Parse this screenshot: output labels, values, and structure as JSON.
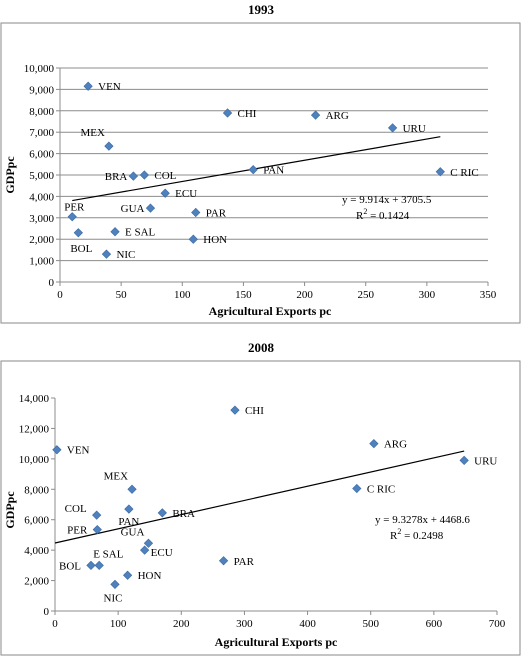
{
  "chart_data": [
    {
      "type": "scatter",
      "title": "1993",
      "xlabel": "Agricultural Exports pc",
      "ylabel": "GDPpc",
      "xlim": [
        0,
        350
      ],
      "ylim": [
        0,
        10000
      ],
      "xticks": [
        "0",
        "50",
        "100",
        "150",
        "200",
        "250",
        "300",
        "350"
      ],
      "yticks": [
        "0",
        "1,000",
        "2,000",
        "3,000",
        "4,000",
        "5,000",
        "6,000",
        "7,000",
        "8,000",
        "9,000",
        "10,000"
      ],
      "grid": "horizontal",
      "points": [
        {
          "label": "VEN",
          "x": 23,
          "y": 9150
        },
        {
          "label": "CHI",
          "x": 137,
          "y": 7900
        },
        {
          "label": "ARG",
          "x": 209,
          "y": 7800
        },
        {
          "label": "URU",
          "x": 272,
          "y": 7200
        },
        {
          "label": "MEX",
          "x": 40,
          "y": 6350
        },
        {
          "label": "BRA",
          "x": 60,
          "y": 4950
        },
        {
          "label": "COL",
          "x": 69,
          "y": 5000
        },
        {
          "label": "PAN",
          "x": 158,
          "y": 5250
        },
        {
          "label": "C RIC",
          "x": 311,
          "y": 5150
        },
        {
          "label": "ECU",
          "x": 86,
          "y": 4150
        },
        {
          "label": "GUA",
          "x": 74,
          "y": 3450
        },
        {
          "label": "PAR",
          "x": 111,
          "y": 3250
        },
        {
          "label": "PER",
          "x": 10,
          "y": 3050
        },
        {
          "label": "E SAL",
          "x": 45,
          "y": 2350
        },
        {
          "label": "BOL",
          "x": 15,
          "y": 2300
        },
        {
          "label": "HON",
          "x": 109,
          "y": 2000
        },
        {
          "label": "NIC",
          "x": 38,
          "y": 1300
        }
      ],
      "trendline": {
        "slope": 9.914,
        "intercept": 3705.5,
        "x_range": [
          10,
          311
        ]
      },
      "equation": "y = 9.914x + 3705.5",
      "r2_prefix": "R",
      "r2_exp": "2",
      "r2_value": " = 0.1424",
      "marker_color": "#4f81bd"
    },
    {
      "type": "scatter",
      "title": "2008",
      "xlabel": "Agricultural Exports pc",
      "ylabel": "GDPpc",
      "xlim": [
        0,
        700
      ],
      "ylim": [
        0,
        14000
      ],
      "xticks": [
        "0",
        "100",
        "200",
        "300",
        "400",
        "500",
        "600",
        "700"
      ],
      "yticks": [
        "0",
        "2,000",
        "4,000",
        "6,000",
        "8,000",
        "10,000",
        "12,000",
        "14,000"
      ],
      "grid": "none",
      "points": [
        {
          "label": "CHI",
          "x": 285,
          "y": 13200
        },
        {
          "label": "ARG",
          "x": 505,
          "y": 11000
        },
        {
          "label": "VEN",
          "x": 3,
          "y": 10600
        },
        {
          "label": "URU",
          "x": 648,
          "y": 9900
        },
        {
          "label": "C RIC",
          "x": 478,
          "y": 8050
        },
        {
          "label": "MEX",
          "x": 122,
          "y": 8000
        },
        {
          "label": "COL",
          "x": 66,
          "y": 6300
        },
        {
          "label": "PAN",
          "x": 117,
          "y": 6700
        },
        {
          "label": "BRA",
          "x": 170,
          "y": 6450
        },
        {
          "label": "PER",
          "x": 67,
          "y": 5350
        },
        {
          "label": "GUA",
          "x": 148,
          "y": 4450
        },
        {
          "label": "ECU",
          "x": 142,
          "y": 4000
        },
        {
          "label": "PAR",
          "x": 267,
          "y": 3300
        },
        {
          "label": "BOL",
          "x": 57,
          "y": 3000
        },
        {
          "label": "E SAL",
          "x": 70,
          "y": 3000
        },
        {
          "label": "HON",
          "x": 115,
          "y": 2350
        },
        {
          "label": "NIC",
          "x": 95,
          "y": 1750
        }
      ],
      "trendline": {
        "slope": 9.3278,
        "intercept": 4468.6,
        "x_range": [
          0,
          648
        ]
      },
      "equation": "y = 9.3278x + 4468.6",
      "r2_prefix": "R",
      "r2_exp": "2",
      "r2_value": " = 0.2498",
      "marker_color": "#4f81bd"
    }
  ]
}
